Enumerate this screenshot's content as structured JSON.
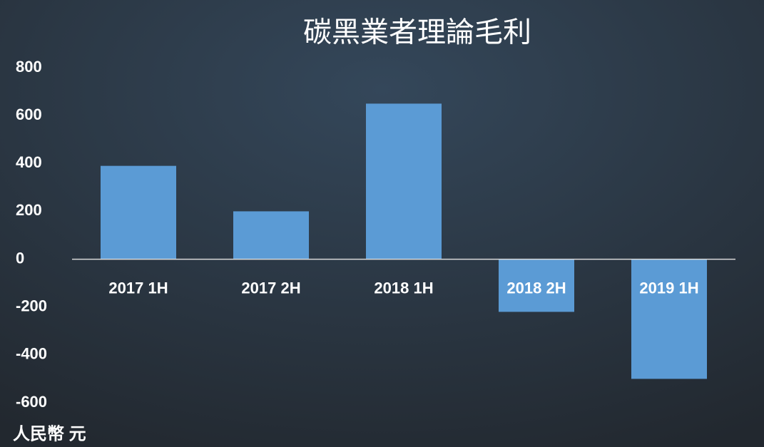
{
  "chart_data": {
    "type": "bar",
    "title": "碳黑業者理論毛利",
    "y_label": "人民幣 元",
    "categories": [
      "2017 1H",
      "2017 2H",
      "2018 1H",
      "2018 2H",
      "2019 1H"
    ],
    "values": [
      390,
      200,
      650,
      -220,
      -500
    ],
    "color": "#5b9bd5",
    "ylim": [
      -600,
      800
    ],
    "yticks": [
      -600,
      -400,
      -200,
      0,
      200,
      400,
      600,
      800
    ],
    "grid": false
  }
}
